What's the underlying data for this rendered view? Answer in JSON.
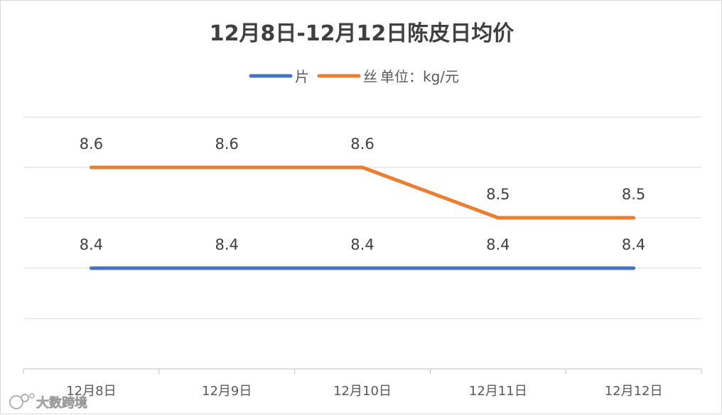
{
  "chart_data": {
    "type": "line",
    "title": "12月8日-12月12日陈皮日均价",
    "legend_position": "top",
    "legend_note": "单位：kg/元",
    "categories": [
      "12月8日",
      "12月9日",
      "12月10日",
      "12月11日",
      "12月12日"
    ],
    "series": [
      {
        "name": "片",
        "color": "#4472C4",
        "values": [
          8.4,
          8.4,
          8.4,
          8.4,
          8.4
        ]
      },
      {
        "name": "丝",
        "color": "#ED7D31",
        "values": [
          8.6,
          8.6,
          8.6,
          8.5,
          8.5
        ]
      }
    ],
    "ylim": [
      8.2,
      8.7
    ],
    "grid": true,
    "y_tick_labels_shown": false,
    "data_labels_shown": true
  },
  "watermark": {
    "text": "大数跨境"
  }
}
